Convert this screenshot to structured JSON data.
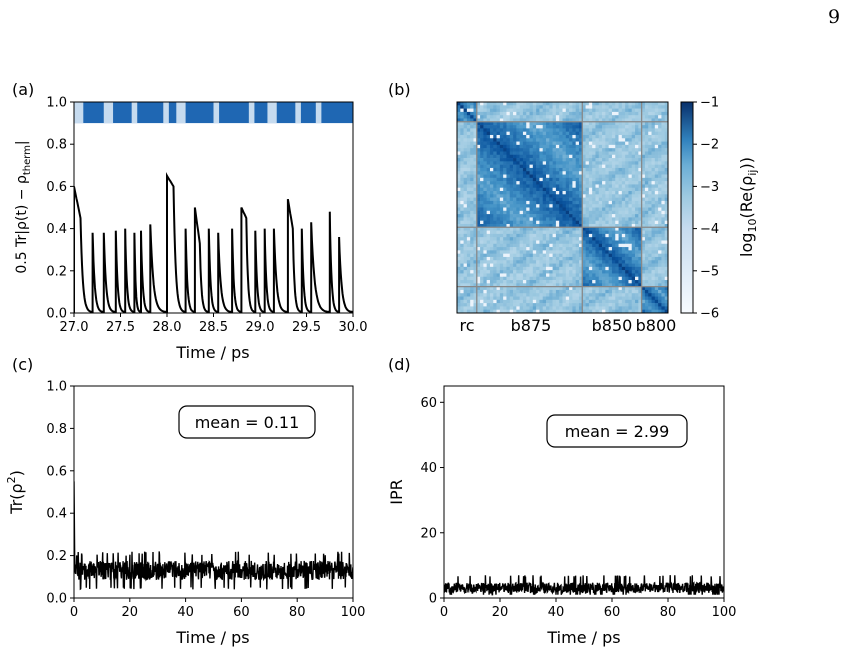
{
  "page_number": "9",
  "panels": {
    "a": {
      "label": "(a)",
      "xlabel": "Time / ps",
      "ylabel": "0.5 Tr|ρ(t) − ρ_therm|",
      "ylabel_main": "0.5 Tr|ρ(t) − ρ",
      "ylabel_sub": "therm",
      "ylabel_end": "|",
      "xticks": [
        "27.0",
        "27.5",
        "28.0",
        "28.5",
        "29.0",
        "29.5",
        "30.0"
      ],
      "yticks": [
        "0.0",
        "0.2",
        "0.4",
        "0.6",
        "0.8",
        "1.0"
      ]
    },
    "b": {
      "label": "(b)",
      "group_labels": [
        "rc",
        "b875",
        "b850",
        "b800"
      ],
      "colorbar_label": "log10(Re(ρij))",
      "colorbar_label_parts": {
        "pre": "log",
        "sub1": "10",
        "mid": "(Re(ρ",
        "sub2": "ij",
        "post": "))"
      },
      "colorbar_ticks": [
        "−1",
        "−2",
        "−3",
        "−4",
        "−5",
        "−6"
      ]
    },
    "c": {
      "label": "(c)",
      "xlabel": "Time / ps",
      "ylabel": "Tr(ρ²)",
      "ylabel_main": "Tr(ρ",
      "ylabel_sup": "2",
      "ylabel_end": ")",
      "annotation": "mean = 0.11",
      "xticks": [
        "0",
        "20",
        "40",
        "60",
        "80",
        "100"
      ],
      "yticks": [
        "0.0",
        "0.2",
        "0.4",
        "0.6",
        "0.8",
        "1.0"
      ]
    },
    "d": {
      "label": "(d)",
      "xlabel": "Time / ps",
      "ylabel": "IPR",
      "annotation": "mean = 2.99",
      "xticks": [
        "0",
        "20",
        "40",
        "60",
        "80",
        "100"
      ],
      "yticks": [
        "0",
        "20",
        "40",
        "60"
      ]
    }
  },
  "chart_data": [
    {
      "type": "line",
      "panel": "a",
      "xlim": [
        27.0,
        30.0
      ],
      "ylim": [
        0.0,
        1.0
      ],
      "series": [
        {
          "values_description_free": true,
          "jumps": [
            {
              "t": 27.0,
              "peak": 0.6,
              "plateau_to": 0.45
            },
            {
              "t": 27.2,
              "peak": 0.38
            },
            {
              "t": 27.32,
              "peak": 0.38
            },
            {
              "t": 27.45,
              "peak": 0.39
            },
            {
              "t": 27.55,
              "peak": 0.4
            },
            {
              "t": 27.65,
              "peak": 0.38
            },
            {
              "t": 27.72,
              "peak": 0.39
            },
            {
              "t": 27.82,
              "peak": 0.42
            },
            {
              "t": 28.0,
              "peak": 0.65,
              "plateau_to": 0.6
            },
            {
              "t": 28.2,
              "peak": 0.4
            },
            {
              "t": 28.3,
              "peak": 0.5,
              "plateau_to": 0.33
            },
            {
              "t": 28.45,
              "peak": 0.4
            },
            {
              "t": 28.55,
              "peak": 0.38
            },
            {
              "t": 28.7,
              "peak": 0.4
            },
            {
              "t": 28.8,
              "peak": 0.5,
              "plateau_to": 0.45
            },
            {
              "t": 28.95,
              "peak": 0.39
            },
            {
              "t": 29.05,
              "peak": 0.4
            },
            {
              "t": 29.15,
              "peak": 0.4
            },
            {
              "t": 29.3,
              "peak": 0.54,
              "plateau_to": 0.4
            },
            {
              "t": 29.45,
              "peak": 0.4
            },
            {
              "t": 29.55,
              "peak": 0.43
            },
            {
              "t": 29.75,
              "peak": 0.48
            },
            {
              "t": 29.85,
              "peak": 0.36
            }
          ]
        }
      ],
      "state_bar": {
        "ylim": [
          0.9,
          1.0
        ],
        "dark_color": "#1f67b3",
        "light_color": "#c6dbef",
        "light_intervals": [
          [
            27.0,
            27.1
          ],
          [
            27.32,
            27.42
          ],
          [
            27.62,
            27.68
          ],
          [
            27.96,
            28.02
          ],
          [
            28.1,
            28.2
          ],
          [
            28.5,
            28.56
          ],
          [
            28.88,
            28.94
          ],
          [
            29.08,
            29.18
          ],
          [
            29.38,
            29.44
          ],
          [
            29.6,
            29.66
          ]
        ]
      }
    },
    {
      "type": "heatmap",
      "panel": "b",
      "size": 64,
      "groups": [
        {
          "name": "rc",
          "start": 0,
          "end": 6
        },
        {
          "name": "b875",
          "start": 6,
          "end": 38
        },
        {
          "name": "b850",
          "start": 38,
          "end": 56
        },
        {
          "name": "b800",
          "start": 56,
          "end": 64
        }
      ],
      "colorscale": "Blues",
      "vmin": -6,
      "vmax": -1
    },
    {
      "type": "line",
      "panel": "c",
      "xlim": [
        0,
        100
      ],
      "ylim": [
        0.0,
        1.0
      ],
      "initial_value": 0.55,
      "mean": 0.11,
      "noise_range": [
        0.04,
        0.22
      ]
    },
    {
      "type": "line",
      "panel": "d",
      "xlim": [
        0,
        100
      ],
      "ylim": [
        0,
        65
      ],
      "mean": 2.99,
      "noise_range": [
        1,
        7
      ]
    }
  ],
  "colors": {
    "line": "#000000",
    "frame": "#000000",
    "grid_divider": "#888888"
  }
}
